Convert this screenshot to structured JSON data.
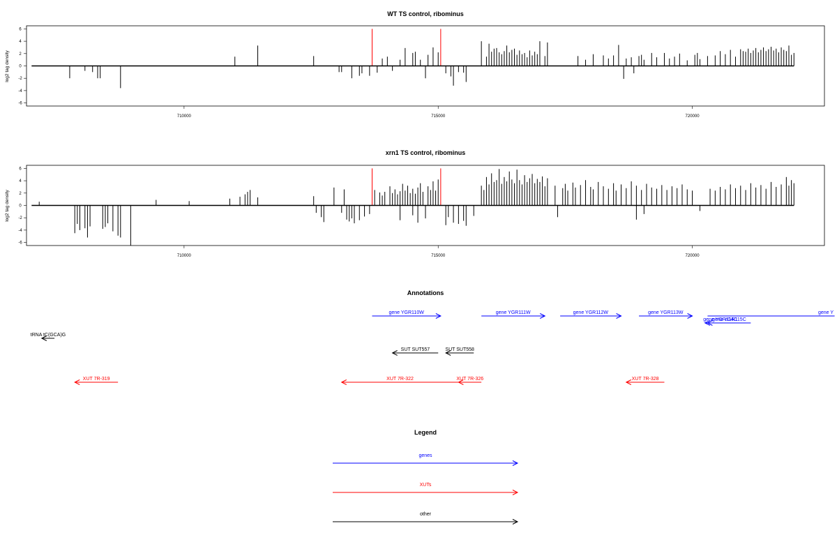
{
  "colors": {
    "genes": "#0000ff",
    "xuts": "#ff0000",
    "other": "#000000",
    "marker": "#ff0000",
    "bars": "#000000"
  },
  "chart_data": [
    {
      "type": "bar",
      "title": "WT TS control, ribominus",
      "ylabel": "log2 tag density",
      "xlim": [
        706900,
        722600
      ],
      "ylim": [
        -6.5,
        6.5
      ],
      "x_ticks": [
        710000,
        715000,
        720000
      ],
      "y_ticks": [
        -6,
        -4,
        -2,
        0,
        2,
        4,
        6
      ],
      "axis_line": [
        707000,
        722000
      ],
      "markers": [
        713700,
        715050
      ],
      "bars": [
        [
          707750,
          -2
        ],
        [
          708050,
          -0.8
        ],
        [
          708200,
          -1
        ],
        [
          708300,
          -2
        ],
        [
          708350,
          -2
        ],
        [
          708750,
          -3.6
        ],
        [
          711000,
          1.5
        ],
        [
          711450,
          3.3
        ],
        [
          712550,
          1.6
        ],
        [
          713050,
          -1
        ],
        [
          713100,
          -1
        ],
        [
          713300,
          -2
        ],
        [
          713450,
          -1.6
        ],
        [
          713500,
          -1.2
        ],
        [
          713650,
          -1.6
        ],
        [
          713800,
          -1.1
        ],
        [
          713900,
          1.2
        ],
        [
          714000,
          1.5
        ],
        [
          714100,
          -0.8
        ],
        [
          714250,
          1
        ],
        [
          714350,
          2.9
        ],
        [
          714500,
          2.1
        ],
        [
          714550,
          2.3
        ],
        [
          714650,
          1
        ],
        [
          714750,
          -2
        ],
        [
          714800,
          1.8
        ],
        [
          714900,
          3
        ],
        [
          715000,
          2.2
        ],
        [
          715150,
          -1.2
        ],
        [
          715300,
          -3.2
        ],
        [
          715250,
          -1.7
        ],
        [
          715400,
          -1
        ],
        [
          715500,
          -1.1
        ],
        [
          715550,
          -2.6
        ],
        [
          715850,
          4
        ],
        [
          715950,
          1.5
        ],
        [
          716000,
          3.6
        ],
        [
          716050,
          2.3
        ],
        [
          716100,
          2.8
        ],
        [
          716150,
          2.9
        ],
        [
          716200,
          2.2
        ],
        [
          716250,
          1.9
        ],
        [
          716300,
          2.4
        ],
        [
          716350,
          3.3
        ],
        [
          716400,
          2.2
        ],
        [
          716450,
          2.6
        ],
        [
          716500,
          2.8
        ],
        [
          716550,
          1.8
        ],
        [
          716600,
          2.5
        ],
        [
          716650,
          1.9
        ],
        [
          716700,
          2.1
        ],
        [
          716750,
          1.4
        ],
        [
          716800,
          2.5
        ],
        [
          716850,
          1.7
        ],
        [
          716900,
          2.3
        ],
        [
          716950,
          1.9
        ],
        [
          717000,
          4
        ],
        [
          717100,
          1.6
        ],
        [
          717150,
          3.8
        ],
        [
          717750,
          1.6
        ],
        [
          717900,
          1
        ],
        [
          718050,
          1.9
        ],
        [
          718250,
          1.7
        ],
        [
          718350,
          1.2
        ],
        [
          718450,
          1.7
        ],
        [
          718550,
          3.4
        ],
        [
          718650,
          -2.1
        ],
        [
          718700,
          1.2
        ],
        [
          718800,
          1.4
        ],
        [
          718850,
          -1.2
        ],
        [
          718950,
          1.6
        ],
        [
          719000,
          1.8
        ],
        [
          719050,
          1
        ],
        [
          719200,
          2.1
        ],
        [
          719300,
          1.4
        ],
        [
          719450,
          2.1
        ],
        [
          719550,
          1.2
        ],
        [
          719650,
          1.5
        ],
        [
          719750,
          2
        ],
        [
          719900,
          0.9
        ],
        [
          720050,
          1.8
        ],
        [
          720100,
          2.1
        ],
        [
          720150,
          1.1
        ],
        [
          720300,
          1.6
        ],
        [
          720450,
          1.7
        ],
        [
          720550,
          2.4
        ],
        [
          720650,
          1.9
        ],
        [
          720750,
          2.6
        ],
        [
          720850,
          1.5
        ],
        [
          720950,
          2.7
        ],
        [
          721000,
          2.4
        ],
        [
          721050,
          2.3
        ],
        [
          721100,
          2.8
        ],
        [
          721150,
          2.1
        ],
        [
          721200,
          2.5
        ],
        [
          721250,
          2.9
        ],
        [
          721300,
          2.2
        ],
        [
          721350,
          2.6
        ],
        [
          721400,
          3
        ],
        [
          721450,
          2.4
        ],
        [
          721500,
          2.7
        ],
        [
          721550,
          3.1
        ],
        [
          721600,
          2.5
        ],
        [
          721650,
          2.8
        ],
        [
          721700,
          2.2
        ],
        [
          721750,
          3
        ],
        [
          721800,
          2.6
        ],
        [
          721850,
          2.4
        ],
        [
          721900,
          3.3
        ],
        [
          721950,
          1.8
        ],
        [
          722000,
          2.1
        ]
      ]
    },
    {
      "type": "bar",
      "title": "xrn1 TS control, ribominus",
      "ylabel": "log2 tag density",
      "xlim": [
        706900,
        722600
      ],
      "ylim": [
        -6.5,
        6.5
      ],
      "x_ticks": [
        710000,
        715000,
        720000
      ],
      "y_ticks": [
        -6,
        -4,
        -2,
        0,
        2,
        4,
        6
      ],
      "axis_line": [
        707000,
        722000
      ],
      "markers": [
        713700,
        715050
      ],
      "bars": [
        [
          707150,
          0.6
        ],
        [
          707850,
          -4.5
        ],
        [
          707900,
          -3
        ],
        [
          707950,
          -4
        ],
        [
          708050,
          -3.7
        ],
        [
          708100,
          -5.2
        ],
        [
          708150,
          -3.4
        ],
        [
          708400,
          -3.8
        ],
        [
          708450,
          -3.5
        ],
        [
          708500,
          -2.9
        ],
        [
          708600,
          -4.2
        ],
        [
          708700,
          -4.9
        ],
        [
          708750,
          -5.2
        ],
        [
          708950,
          -6.5
        ],
        [
          709450,
          0.9
        ],
        [
          710100,
          0.7
        ],
        [
          710900,
          1.1
        ],
        [
          711100,
          1.4
        ],
        [
          711200,
          1.8
        ],
        [
          711250,
          2.2
        ],
        [
          711300,
          2.5
        ],
        [
          711450,
          1.3
        ],
        [
          712550,
          1.5
        ],
        [
          712600,
          -1.2
        ],
        [
          712700,
          -1.9
        ],
        [
          712750,
          -2.7
        ],
        [
          712950,
          2.9
        ],
        [
          713100,
          -1.2
        ],
        [
          713150,
          2.6
        ],
        [
          713200,
          -2.3
        ],
        [
          713250,
          -2.6
        ],
        [
          713300,
          -2.1
        ],
        [
          713350,
          -2.9
        ],
        [
          713450,
          -2.4
        ],
        [
          713550,
          -1.8
        ],
        [
          713650,
          -1.4
        ],
        [
          713750,
          2.5
        ],
        [
          713850,
          2.1
        ],
        [
          713900,
          1.6
        ],
        [
          713950,
          2.2
        ],
        [
          714050,
          3.1
        ],
        [
          714100,
          2
        ],
        [
          714150,
          2.6
        ],
        [
          714200,
          1.8
        ],
        [
          714250,
          2.3
        ],
        [
          714300,
          3.5
        ],
        [
          714350,
          2.4
        ],
        [
          714400,
          3.2
        ],
        [
          714450,
          2
        ],
        [
          714500,
          2.7
        ],
        [
          714550,
          1.9
        ],
        [
          714600,
          2.9
        ],
        [
          714650,
          3.6
        ],
        [
          714700,
          2.2
        ],
        [
          714800,
          3.1
        ],
        [
          714850,
          2.5
        ],
        [
          714900,
          3.9
        ],
        [
          714950,
          2.4
        ],
        [
          715000,
          4.2
        ],
        [
          714250,
          -2.4
        ],
        [
          714500,
          -1.6
        ],
        [
          714600,
          -2.8
        ],
        [
          714750,
          -2.1
        ],
        [
          715150,
          -3.2
        ],
        [
          715200,
          -1.9
        ],
        [
          715300,
          -2.8
        ],
        [
          715400,
          -3
        ],
        [
          715500,
          -2.5
        ],
        [
          715550,
          -3.3
        ],
        [
          715700,
          -1.7
        ],
        [
          715850,
          3.2
        ],
        [
          715900,
          2.5
        ],
        [
          715950,
          4.6
        ],
        [
          716000,
          3.4
        ],
        [
          716050,
          5.2
        ],
        [
          716100,
          3.8
        ],
        [
          716150,
          4.1
        ],
        [
          716200,
          5.9
        ],
        [
          716250,
          3.5
        ],
        [
          716300,
          4.6
        ],
        [
          716350,
          3.9
        ],
        [
          716400,
          5.5
        ],
        [
          716450,
          4.2
        ],
        [
          716500,
          3.6
        ],
        [
          716550,
          5.8
        ],
        [
          716600,
          4.1
        ],
        [
          716650,
          3.4
        ],
        [
          716700,
          4.9
        ],
        [
          716750,
          3.8
        ],
        [
          716800,
          4.4
        ],
        [
          716850,
          5.1
        ],
        [
          716900,
          3.6
        ],
        [
          716950,
          4.3
        ],
        [
          717000,
          3.8
        ],
        [
          717050,
          4.7
        ],
        [
          717100,
          3.1
        ],
        [
          717150,
          4.4
        ],
        [
          717300,
          3.2
        ],
        [
          717350,
          -1.9
        ],
        [
          717450,
          2.8
        ],
        [
          717500,
          3.5
        ],
        [
          717550,
          2.4
        ],
        [
          717650,
          3.7
        ],
        [
          717700,
          2.9
        ],
        [
          717800,
          3.3
        ],
        [
          717900,
          4.1
        ],
        [
          718000,
          3
        ],
        [
          718050,
          2.6
        ],
        [
          718150,
          3.8
        ],
        [
          718250,
          3.1
        ],
        [
          718350,
          2.7
        ],
        [
          718450,
          3.6
        ],
        [
          718500,
          2.4
        ],
        [
          718600,
          3.4
        ],
        [
          718700,
          2.8
        ],
        [
          718800,
          3.9
        ],
        [
          718900,
          3.2
        ],
        [
          719000,
          2.5
        ],
        [
          719100,
          3.5
        ],
        [
          719200,
          2.9
        ],
        [
          719300,
          2.7
        ],
        [
          719400,
          3.3
        ],
        [
          719500,
          2.5
        ],
        [
          719600,
          3.1
        ],
        [
          719700,
          2.8
        ],
        [
          719800,
          3.4
        ],
        [
          719900,
          2.6
        ],
        [
          720000,
          2.4
        ],
        [
          718900,
          -2.3
        ],
        [
          719050,
          -1.4
        ],
        [
          720150,
          -0.9
        ],
        [
          720350,
          2.7
        ],
        [
          720450,
          2.4
        ],
        [
          720550,
          3
        ],
        [
          720650,
          2.6
        ],
        [
          720750,
          3.4
        ],
        [
          720850,
          2.8
        ],
        [
          720950,
          3.2
        ],
        [
          721050,
          2.5
        ],
        [
          721150,
          3.6
        ],
        [
          721250,
          2.9
        ],
        [
          721350,
          3.3
        ],
        [
          721450,
          2.7
        ],
        [
          721550,
          3.8
        ],
        [
          721650,
          3
        ],
        [
          721750,
          3.4
        ],
        [
          721850,
          4.6
        ],
        [
          721900,
          3.2
        ],
        [
          721950,
          4.1
        ],
        [
          722000,
          3.6
        ]
      ]
    }
  ],
  "annotations": {
    "title": "Annotations",
    "features": [
      {
        "label": "gene YGR110W",
        "kind": "genes",
        "x1": 713700,
        "x2": 715050,
        "row": 1,
        "dir": "right"
      },
      {
        "label": "gene YGR111W",
        "kind": "genes",
        "x1": 715850,
        "x2": 717100,
        "row": 1,
        "dir": "right"
      },
      {
        "label": "gene YGR112W",
        "kind": "genes",
        "x1": 717400,
        "x2": 718600,
        "row": 1,
        "dir": "right"
      },
      {
        "label": "gene YGR113W",
        "kind": "genes",
        "x1": 718950,
        "x2": 720000,
        "row": 1,
        "dir": "right"
      },
      {
        "label": "gene Y",
        "kind": "genes",
        "x1": 720300,
        "x2": 722800,
        "row": 1,
        "dir": "none"
      },
      {
        "label": "gene YGR114C",
        "kind": "genes",
        "x1": 720250,
        "x2": 720850,
        "row": 2,
        "dir": "left"
      },
      {
        "label": "gene YGR115C",
        "kind": "genes",
        "x1": 720300,
        "x2": 721150,
        "row": 2,
        "dir": "left"
      },
      {
        "label": "tRNA tC(GCA)G",
        "kind": "other",
        "x1": 707200,
        "x2": 707450,
        "row": 3,
        "dir": "left"
      },
      {
        "label": "SUT SUT557",
        "kind": "other",
        "x1": 714100,
        "x2": 715000,
        "row": 4,
        "dir": "left"
      },
      {
        "label": "SUT SUT558",
        "kind": "other",
        "x1": 715150,
        "x2": 715700,
        "row": 4,
        "dir": "left"
      },
      {
        "label": "XUT 7R-319",
        "kind": "xuts",
        "x1": 707850,
        "x2": 708700,
        "row": 5,
        "dir": "left"
      },
      {
        "label": "XUT 7R-322",
        "kind": "xuts",
        "x1": 713100,
        "x2": 715400,
        "row": 5,
        "dir": "left"
      },
      {
        "label": "XUT 7R-326",
        "kind": "xuts",
        "x1": 715400,
        "x2": 715850,
        "row": 5,
        "dir": "left"
      },
      {
        "label": "XUT 7R-328",
        "kind": "xuts",
        "x1": 718700,
        "x2": 719450,
        "row": 5,
        "dir": "left"
      }
    ]
  },
  "legend": {
    "title": "Legend",
    "items": [
      {
        "label": "genes",
        "kind": "genes"
      },
      {
        "label": "XUTs",
        "kind": "xuts"
      },
      {
        "label": "other",
        "kind": "other"
      }
    ]
  }
}
